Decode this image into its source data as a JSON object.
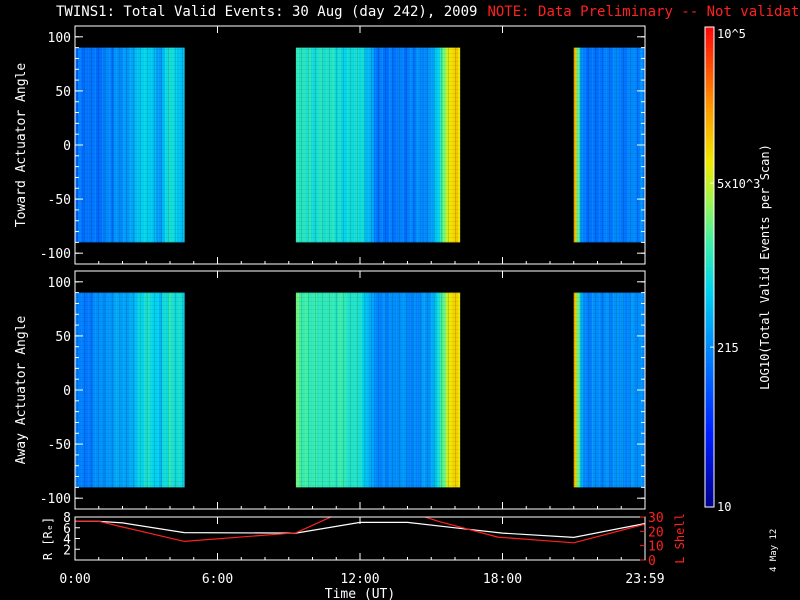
{
  "header": {
    "title": "TWINS1: Total Valid Events: 30 Aug (day 242), 2009",
    "note": "NOTE: Data Preliminary -- Not validated"
  },
  "stamp": "4 May 12",
  "colors": {
    "background": "#000000",
    "foreground": "#ffffff",
    "note": "#ff2020",
    "lshell": "#ff2020",
    "range": "#ffffff"
  },
  "chart_data": [
    {
      "type": "heatmap",
      "panel": "top",
      "ylabel": "Toward Actuator Angle",
      "ylim": [
        -110,
        110
      ],
      "yticks": [
        100,
        50,
        0,
        -50,
        -100
      ],
      "data_range_deg": [
        -90,
        90
      ],
      "x_range_hours": [
        0,
        24
      ],
      "coverage_hours": [
        [
          0.0,
          4.6
        ],
        [
          9.3,
          16.2
        ],
        [
          21.0,
          24.0
        ]
      ],
      "profile_hours": [
        0.0,
        1.0,
        2.0,
        2.5,
        3.0,
        3.5,
        4.0,
        4.5,
        9.3,
        9.6,
        10.0,
        10.5,
        11.0,
        12.0,
        12.6,
        13.0,
        14.0,
        15.0,
        15.8,
        16.2,
        21.0,
        21.3,
        22.0,
        23.0,
        24.0
      ],
      "profile_log10_events": [
        2.2,
        2.2,
        2.35,
        2.6,
        2.9,
        2.5,
        3.0,
        2.6,
        3.2,
        3.05,
        3.0,
        3.0,
        2.95,
        2.9,
        2.3,
        2.2,
        2.25,
        2.4,
        4.0,
        4.0,
        4.0,
        2.2,
        2.2,
        2.25,
        2.3
      ]
    },
    {
      "type": "heatmap",
      "panel": "middle",
      "ylabel": "Away Actuator Angle",
      "ylim": [
        -110,
        110
      ],
      "yticks": [
        100,
        50,
        0,
        -50,
        -100
      ],
      "data_range_deg": [
        -90,
        90
      ],
      "x_range_hours": [
        0,
        24
      ],
      "coverage_hours": [
        [
          0.0,
          4.6
        ],
        [
          9.3,
          16.2
        ],
        [
          21.0,
          24.0
        ]
      ],
      "profile_hours": [
        0.0,
        1.0,
        2.0,
        2.5,
        3.0,
        3.5,
        4.0,
        4.5,
        9.3,
        9.6,
        10.0,
        10.5,
        11.0,
        12.0,
        12.6,
        13.0,
        14.0,
        15.0,
        15.8,
        16.2,
        21.0,
        21.3,
        22.0,
        23.0,
        24.0
      ],
      "profile_log10_events": [
        2.25,
        2.3,
        2.5,
        2.7,
        3.0,
        2.7,
        3.1,
        2.8,
        3.3,
        3.2,
        3.1,
        3.15,
        3.1,
        3.0,
        2.4,
        2.3,
        2.3,
        2.5,
        4.0,
        4.0,
        4.0,
        2.3,
        2.3,
        2.35,
        2.4
      ]
    },
    {
      "type": "line",
      "panel": "bottom",
      "xlabel": "Time (UT)",
      "xticks": [
        "0:00",
        "6:00",
        "12:00",
        "18:00",
        "23:59"
      ],
      "xtick_hours": [
        0,
        6,
        12,
        18,
        24
      ],
      "ylabel_left": "R [Rₑ]",
      "ylim_left": [
        0,
        8
      ],
      "yticks_left": [
        2,
        4,
        6,
        8
      ],
      "ylabel_right": "L Shell",
      "ylim_right": [
        0,
        30
      ],
      "yticks_right": [
        0,
        10,
        20,
        30
      ],
      "series": [
        {
          "name": "R",
          "axis": "left",
          "color": "#ffffff",
          "x": [
            0,
            1,
            2,
            4.6,
            9.3,
            12,
            14,
            16,
            18,
            21,
            24
          ],
          "y": [
            7.2,
            7.2,
            6.9,
            5.1,
            5.0,
            7.0,
            7.0,
            6.0,
            5.0,
            4.2,
            6.8
          ]
        },
        {
          "name": "L Shell",
          "axis": "right",
          "color": "#ff2020",
          "x": [
            0,
            1,
            2,
            4.6,
            9.3,
            11.3,
            14.0,
            15.3,
            17.8,
            21,
            24
          ],
          "y": [
            27,
            27,
            23,
            13,
            19,
            34,
            34,
            27,
            16,
            12,
            25
          ]
        }
      ]
    },
    {
      "type": "colorbar",
      "label": "LOG10(Total Valid Events per Scan)",
      "range_log10": [
        1,
        5
      ],
      "ticks": [
        {
          "label": "10",
          "log10": 1.0
        },
        {
          "label": "215",
          "log10": 2.3324
        },
        {
          "label": "5x10^3",
          "log10": 3.699
        },
        {
          "label": "10^5",
          "log10": 5.0
        }
      ]
    }
  ]
}
